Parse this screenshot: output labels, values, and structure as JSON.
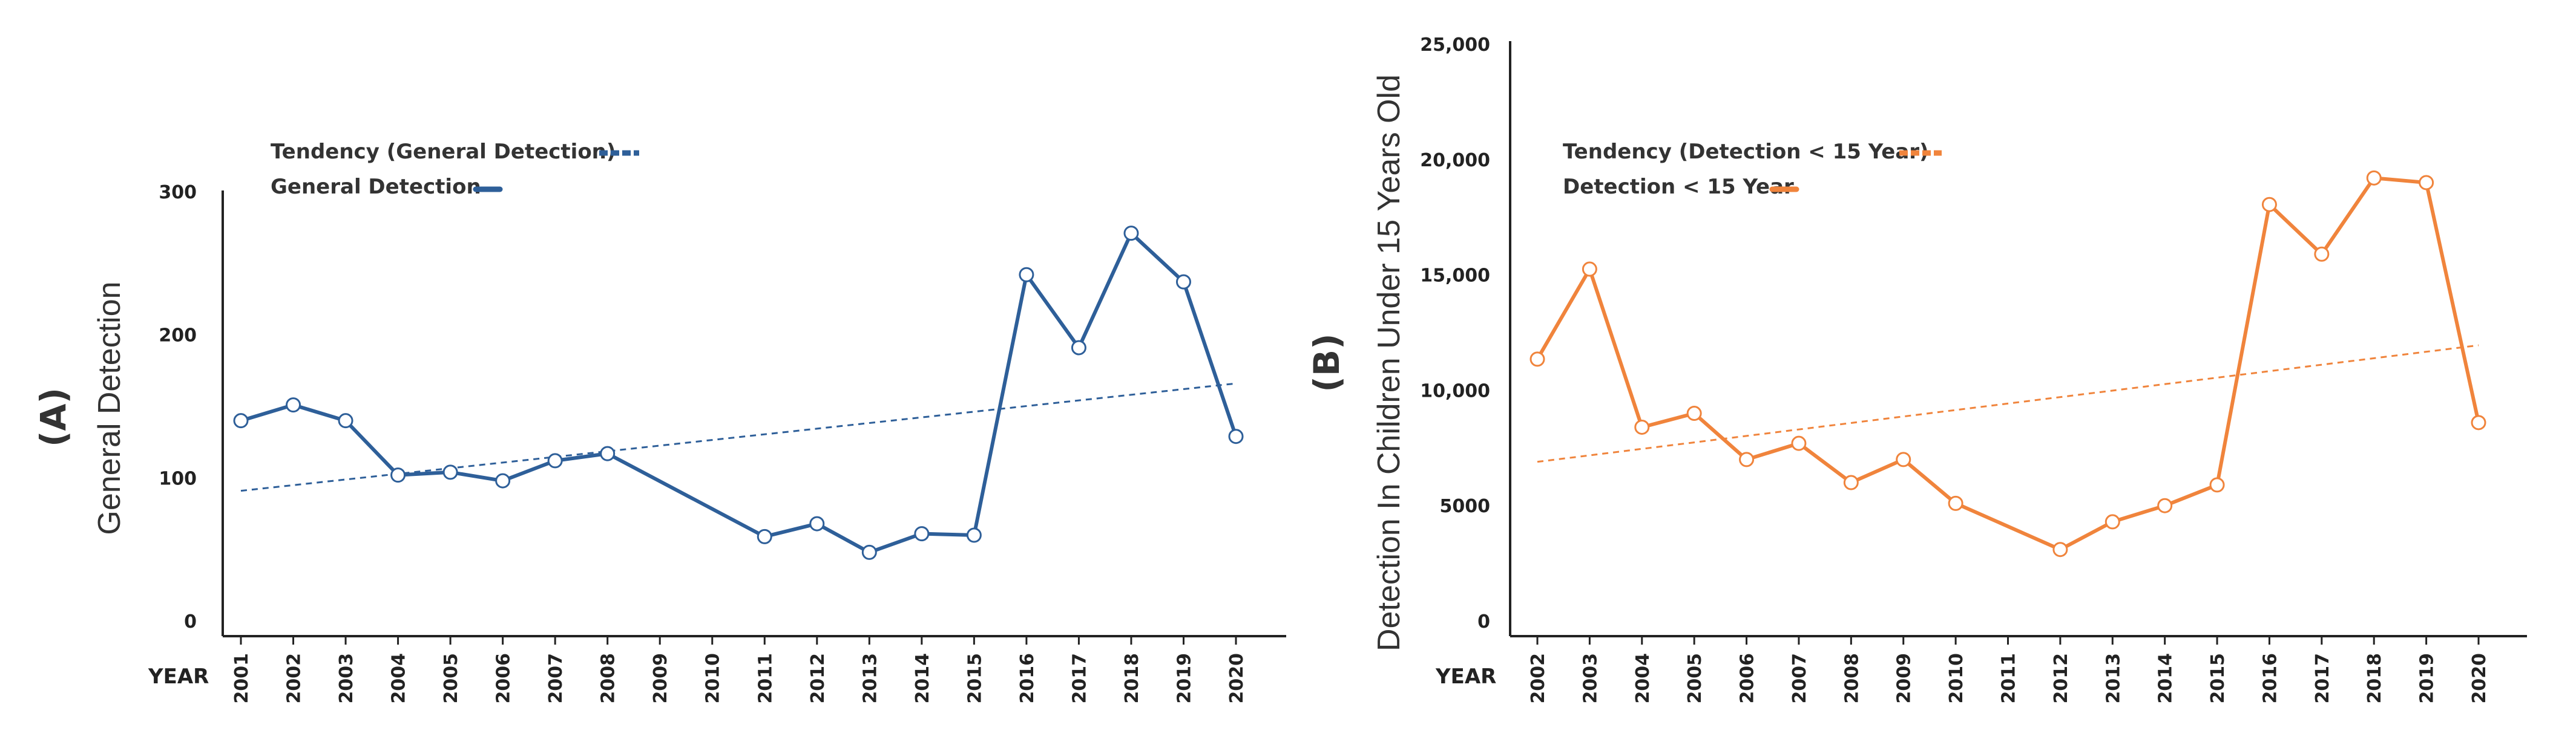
{
  "chart_data": [
    {
      "type": "line",
      "panel_label": "(A)",
      "ylabel": "General Detection",
      "xlabel": "YEAR",
      "color": "#2e5f99",
      "yticks": [
        "0",
        "100",
        "200",
        "300"
      ],
      "ylim": [
        0,
        300
      ],
      "x": [
        "2001",
        "2002",
        "2003",
        "2004",
        "2005",
        "2006",
        "2007",
        "2008",
        "2009",
        "2010",
        "2011",
        "2012",
        "2013",
        "2014",
        "2015",
        "2016",
        "2017",
        "2018",
        "2019",
        "2020"
      ],
      "series": [
        {
          "name": "General Detection",
          "values": [
            140,
            151,
            140,
            102,
            104,
            98,
            112,
            117,
            null,
            null,
            59,
            68,
            48,
            61,
            60,
            242,
            191,
            271,
            237,
            129
          ]
        },
        {
          "name": "Tendency (General Detection)",
          "style": "dashed",
          "start": 91,
          "end": 166
        }
      ],
      "legend": [
        "Tendency (General Detection)",
        "General Detection"
      ]
    },
    {
      "type": "line",
      "panel_label": "(B)",
      "ylabel": "Detection In Children Under 15 Years Old",
      "xlabel": "YEAR",
      "color": "#f0843c",
      "yticks": [
        "0",
        "5000",
        "10,000",
        "15,000",
        "20,000",
        "25,000"
      ],
      "ylim": [
        0,
        25000
      ],
      "x": [
        "2002",
        "2003",
        "2004",
        "2005",
        "2006",
        "2007",
        "2008",
        "2009",
        "2010",
        "2011",
        "2012",
        "2013",
        "2014",
        "2015",
        "2016",
        "2017",
        "2018",
        "2019",
        "2020"
      ],
      "series": [
        {
          "name": "Detection < 15 Year",
          "values": [
            11350,
            15250,
            8400,
            9000,
            7000,
            7700,
            6000,
            7000,
            5100,
            null,
            3100,
            4300,
            5000,
            5900,
            18050,
            15900,
            19200,
            19000,
            8600
          ]
        },
        {
          "name": "Tendency (Detection < 15 Year)",
          "style": "dashed",
          "start": 6900,
          "end": 11950
        }
      ],
      "legend": [
        "Tendency (Detection < 15 Year)",
        "Detection < 15 Year"
      ]
    }
  ]
}
